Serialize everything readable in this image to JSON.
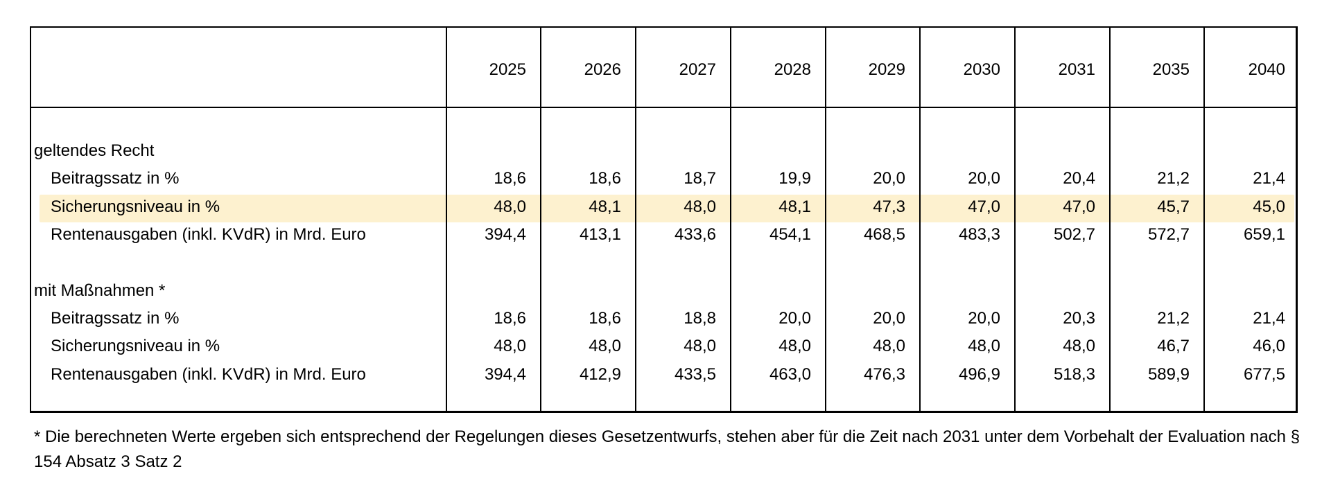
{
  "table": {
    "years": [
      "2025",
      "2026",
      "2027",
      "2028",
      "2029",
      "2030",
      "2031",
      "2035",
      "2040"
    ],
    "sections": [
      {
        "title": "geltendes Recht",
        "rows": [
          {
            "label": "Beitragssatz in %",
            "values": [
              "18,6",
              "18,6",
              "18,7",
              "19,9",
              "20,0",
              "20,0",
              "20,4",
              "21,2",
              "21,4"
            ],
            "highlighted": false
          },
          {
            "label": "Sicherungsniveau in %",
            "values": [
              "48,0",
              "48,1",
              "48,0",
              "48,1",
              "47,3",
              "47,0",
              "47,0",
              "45,7",
              "45,0"
            ],
            "highlighted": true
          },
          {
            "label": "Rentenausgaben (inkl. KVdR) in Mrd. Euro",
            "values": [
              "394,4",
              "413,1",
              "433,6",
              "454,1",
              "468,5",
              "483,3",
              "502,7",
              "572,7",
              "659,1"
            ],
            "highlighted": false
          }
        ]
      },
      {
        "title": "mit Maßnahmen *",
        "rows": [
          {
            "label": "Beitragssatz in %",
            "values": [
              "18,6",
              "18,6",
              "18,8",
              "20,0",
              "20,0",
              "20,0",
              "20,3",
              "21,2",
              "21,4"
            ],
            "highlighted": false
          },
          {
            "label": "Sicherungsniveau in %",
            "values": [
              "48,0",
              "48,0",
              "48,0",
              "48,0",
              "48,0",
              "48,0",
              "48,0",
              "46,7",
              "46,0"
            ],
            "highlighted": false
          },
          {
            "label": "Rentenausgaben (inkl. KVdR) in Mrd. Euro",
            "values": [
              "394,4",
              "412,9",
              "433,5",
              "463,0",
              "476,3",
              "496,9",
              "518,3",
              "589,9",
              "677,5"
            ],
            "highlighted": false
          }
        ]
      }
    ],
    "highlight_color": "#fdf1cf"
  },
  "footnote": "* Die berechneten Werte ergeben sich entsprechend der Regelungen dieses Gesetzentwurfs, stehen aber für die Zeit nach 2031 unter dem Vorbehalt der Evaluation nach § 154 Absatz 3 Satz 2"
}
